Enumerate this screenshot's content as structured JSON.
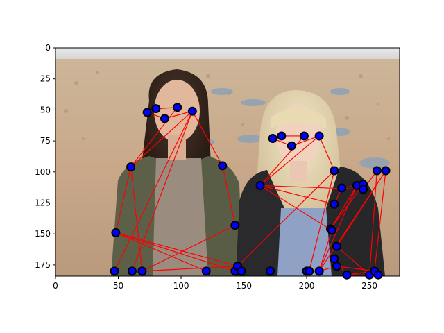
{
  "chart_data": {
    "type": "scatter",
    "xlim": [
      0,
      274
    ],
    "ylim": [
      184,
      0
    ],
    "x_ticks": [
      0,
      50,
      100,
      150,
      200,
      250
    ],
    "y_ticks": [
      0,
      25,
      50,
      75,
      100,
      125,
      150,
      175
    ],
    "grid": false,
    "background": "photo of two women standing on a pebble beach, one brunette in a green jacket, one blonde in a black fur-collared jacket",
    "colors": {
      "points": "#0000ff",
      "edges": "#ff0000"
    },
    "keypoints": [
      {
        "x": 87,
        "y": 57
      },
      {
        "x": 73,
        "y": 52
      },
      {
        "x": 80,
        "y": 49
      },
      {
        "x": 97,
        "y": 48
      },
      {
        "x": 109,
        "y": 51
      },
      {
        "x": 60,
        "y": 96
      },
      {
        "x": 133,
        "y": 95
      },
      {
        "x": 48,
        "y": 149
      },
      {
        "x": 143,
        "y": 143
      },
      {
        "x": 47,
        "y": 180
      },
      {
        "x": 61,
        "y": 180
      },
      {
        "x": 69,
        "y": 180
      },
      {
        "x": 120,
        "y": 180
      },
      {
        "x": 143,
        "y": 180
      },
      {
        "x": 145,
        "y": 176
      },
      {
        "x": 148,
        "y": 180
      },
      {
        "x": 188,
        "y": 79
      },
      {
        "x": 173,
        "y": 73
      },
      {
        "x": 180,
        "y": 71
      },
      {
        "x": 198,
        "y": 71
      },
      {
        "x": 210,
        "y": 71
      },
      {
        "x": 163,
        "y": 111
      },
      {
        "x": 222,
        "y": 99
      },
      {
        "x": 171,
        "y": 180
      },
      {
        "x": 200,
        "y": 180
      },
      {
        "x": 202,
        "y": 180
      },
      {
        "x": 210,
        "y": 180
      },
      {
        "x": 219,
        "y": 146
      },
      {
        "x": 220,
        "y": 147
      },
      {
        "x": 222,
        "y": 126
      },
      {
        "x": 228,
        "y": 113
      },
      {
        "x": 240,
        "y": 111
      },
      {
        "x": 245,
        "y": 110
      },
      {
        "x": 245,
        "y": 114
      },
      {
        "x": 256,
        "y": 99
      },
      {
        "x": 263,
        "y": 99
      },
      {
        "x": 222,
        "y": 170
      },
      {
        "x": 224,
        "y": 176
      },
      {
        "x": 224,
        "y": 160
      },
      {
        "x": 232,
        "y": 183
      },
      {
        "x": 250,
        "y": 183
      },
      {
        "x": 254,
        "y": 180
      },
      {
        "x": 257,
        "y": 183
      }
    ],
    "edges": [
      [
        1,
        2
      ],
      [
        2,
        3
      ],
      [
        3,
        4
      ],
      [
        1,
        5
      ],
      [
        4,
        6
      ],
      [
        5,
        6
      ],
      [
        5,
        7
      ],
      [
        7,
        9
      ],
      [
        5,
        10
      ],
      [
        5,
        11
      ],
      [
        6,
        8
      ],
      [
        6,
        12
      ],
      [
        8,
        13
      ],
      [
        8,
        14
      ],
      [
        8,
        15
      ],
      [
        9,
        12
      ],
      [
        12,
        15
      ],
      [
        15,
        23
      ],
      [
        23,
        26
      ],
      [
        17,
        18
      ],
      [
        18,
        19
      ],
      [
        19,
        20
      ],
      [
        17,
        21
      ],
      [
        21,
        22
      ],
      [
        20,
        22
      ],
      [
        21,
        23
      ],
      [
        22,
        29
      ],
      [
        29,
        27
      ],
      [
        27,
        36
      ],
      [
        27,
        38
      ],
      [
        22,
        34
      ],
      [
        34,
        35
      ],
      [
        35,
        41
      ],
      [
        22,
        30
      ],
      [
        30,
        31
      ],
      [
        31,
        33
      ],
      [
        33,
        28
      ],
      [
        28,
        32
      ],
      [
        32,
        27
      ],
      [
        36,
        39
      ],
      [
        39,
        41
      ],
      [
        37,
        40
      ],
      [
        38,
        42
      ],
      [
        42,
        40
      ],
      [
        40,
        41
      ],
      [
        36,
        42
      ],
      [
        26,
        27
      ]
    ]
  }
}
